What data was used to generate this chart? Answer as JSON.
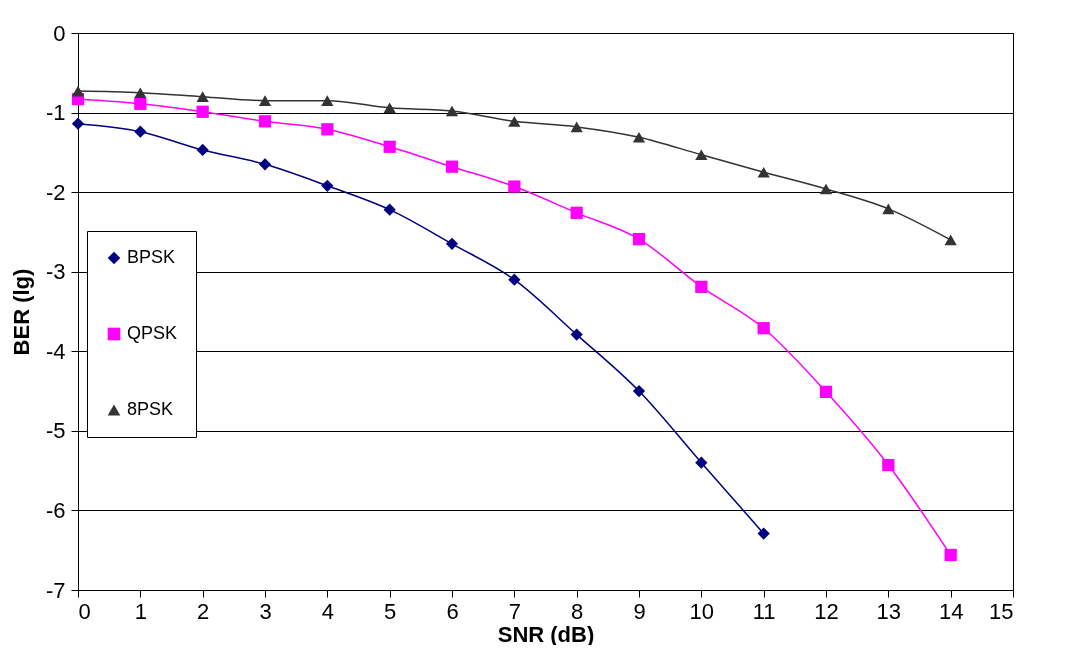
{
  "chart_data": {
    "type": "line",
    "xlabel": "SNR (dB)",
    "ylabel": "BER (lg)",
    "x": [
      0,
      1,
      2,
      3,
      4,
      5,
      6,
      7,
      8,
      9,
      10,
      11,
      12,
      13,
      14
    ],
    "series": [
      {
        "name": "BPSK",
        "color": "#000080",
        "marker": "diamond",
        "values": [
          -1.14,
          -1.24,
          -1.47,
          -1.65,
          -1.92,
          -2.22,
          -2.65,
          -3.1,
          -3.79,
          -4.5,
          -5.4,
          -6.29,
          null,
          null,
          null
        ]
      },
      {
        "name": "QPSK",
        "color": "#ff00ff",
        "marker": "square",
        "values": [
          -0.83,
          -0.89,
          -0.99,
          -1.11,
          -1.21,
          -1.43,
          -1.68,
          -1.93,
          -2.26,
          -2.59,
          -3.19,
          -3.71,
          -4.51,
          -5.43,
          -6.56
        ]
      },
      {
        "name": "8PSK",
        "color": "#333333",
        "marker": "triangle",
        "values": [
          -0.73,
          -0.75,
          -0.8,
          -0.85,
          -0.85,
          -0.94,
          -0.98,
          -1.11,
          -1.18,
          -1.31,
          -1.53,
          -1.75,
          -1.96,
          -2.21,
          -2.6
        ]
      }
    ],
    "xlim": [
      0,
      15
    ],
    "xticks": [
      0,
      1,
      2,
      3,
      4,
      5,
      6,
      7,
      8,
      9,
      10,
      11,
      12,
      13,
      14,
      15
    ],
    "ylim": [
      -7,
      0
    ],
    "yticks": [
      -7,
      -6,
      -5,
      -4,
      -3,
      -2,
      -1,
      0
    ],
    "grid": "y",
    "legend": "left",
    "line_style": "solid"
  }
}
